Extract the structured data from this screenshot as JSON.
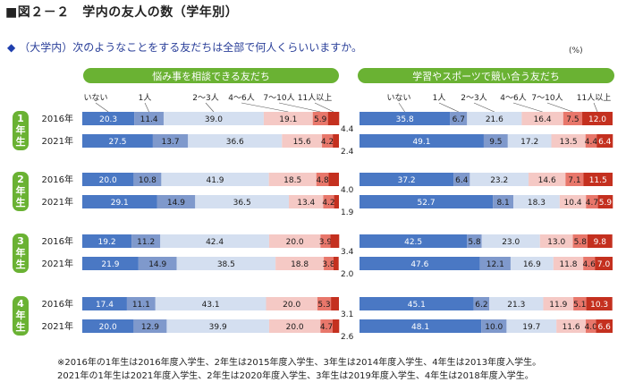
{
  "title": "■図２－２　学内の友人の数（学年別）",
  "question": "（大学内）次のようなことをする友だちは全部で何人くらいいますか。",
  "unit_label": "(%)",
  "footnotes": [
    "※2016年の1年生は2016年度入学生、2年生は2015年度入学生、3年生は2014年度入学生、4年生は2013年度入学生。",
    "2021年の1年生は2021年度入学生、2年生は2020年度入学生、3年生は2019年度入学生、4年生は2018年度入学生。"
  ],
  "colors": {
    "green": "#6ab233",
    "seg": [
      "#4a78c4",
      "#7f99cc",
      "#d4dff0",
      "#f5c9c5",
      "#e8776b",
      "#c4301f"
    ]
  },
  "chart_data": {
    "type": "bar",
    "stacked": true,
    "orientation": "horizontal",
    "categories_legend": [
      "いない",
      "1人",
      "2～3人",
      "4～6人",
      "7～10人",
      "11人以上"
    ],
    "panels": [
      {
        "title": "悩み事を相談できる友だち",
        "groups": [
          {
            "grade": "1年生",
            "rows": [
              {
                "year": "2016年",
                "values": [
                  20.3,
                  11.4,
                  39.0,
                  19.1,
                  5.9,
                  4.4
                ]
              },
              {
                "year": "2021年",
                "values": [
                  27.5,
                  13.7,
                  36.6,
                  15.6,
                  4.2,
                  2.4
                ]
              }
            ]
          },
          {
            "grade": "2年生",
            "rows": [
              {
                "year": "2016年",
                "values": [
                  20.0,
                  10.8,
                  41.9,
                  18.5,
                  4.8,
                  4.0
                ]
              },
              {
                "year": "2021年",
                "values": [
                  29.1,
                  14.9,
                  36.5,
                  13.4,
                  4.2,
                  1.9
                ]
              }
            ]
          },
          {
            "grade": "3年生",
            "rows": [
              {
                "year": "2016年",
                "values": [
                  19.2,
                  11.2,
                  42.4,
                  20.0,
                  3.9,
                  3.4
                ]
              },
              {
                "year": "2021年",
                "values": [
                  21.9,
                  14.9,
                  38.5,
                  18.8,
                  3.8,
                  2.0
                ]
              }
            ]
          },
          {
            "grade": "4年生",
            "rows": [
              {
                "year": "2016年",
                "values": [
                  17.4,
                  11.1,
                  43.1,
                  20.0,
                  5.3,
                  3.1
                ]
              },
              {
                "year": "2021年",
                "values": [
                  20.0,
                  12.9,
                  39.9,
                  20.0,
                  4.7,
                  2.6
                ]
              }
            ]
          }
        ]
      },
      {
        "title": "学習やスポーツで競い合う友だち",
        "groups": [
          {
            "grade": "1年生",
            "rows": [
              {
                "year": "2016年",
                "values": [
                  35.8,
                  6.7,
                  21.6,
                  16.4,
                  7.5,
                  12.0
                ]
              },
              {
                "year": "2021年",
                "values": [
                  49.1,
                  9.5,
                  17.2,
                  13.5,
                  4.4,
                  6.4
                ]
              }
            ]
          },
          {
            "grade": "2年生",
            "rows": [
              {
                "year": "2016年",
                "values": [
                  37.2,
                  6.4,
                  23.2,
                  14.6,
                  7.1,
                  11.5
                ]
              },
              {
                "year": "2021年",
                "values": [
                  52.7,
                  8.1,
                  18.3,
                  10.4,
                  4.7,
                  5.9
                ]
              }
            ]
          },
          {
            "grade": "3年生",
            "rows": [
              {
                "year": "2016年",
                "values": [
                  42.5,
                  5.8,
                  23.0,
                  13.0,
                  5.8,
                  9.8
                ]
              },
              {
                "year": "2021年",
                "values": [
                  47.6,
                  12.1,
                  16.9,
                  11.8,
                  4.6,
                  7.0
                ]
              }
            ]
          },
          {
            "grade": "4年生",
            "rows": [
              {
                "year": "2016年",
                "values": [
                  45.1,
                  6.2,
                  21.3,
                  11.9,
                  5.1,
                  10.3
                ]
              },
              {
                "year": "2021年",
                "values": [
                  48.1,
                  10.0,
                  19.7,
                  11.6,
                  4.0,
                  6.6
                ]
              }
            ]
          }
        ]
      }
    ]
  }
}
